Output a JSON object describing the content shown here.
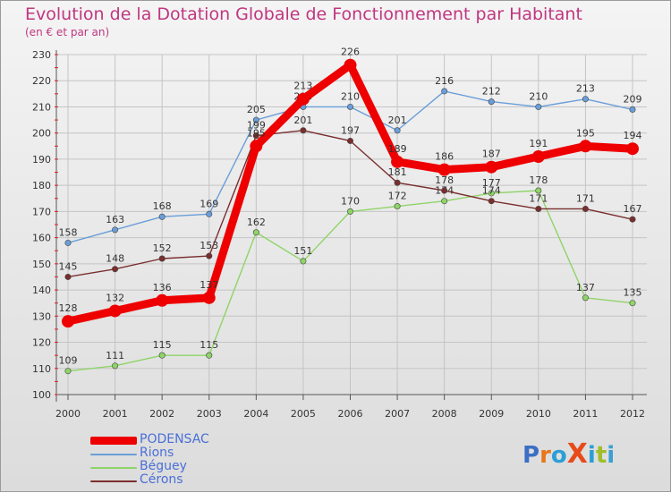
{
  "header": {
    "title": "Evolution de la Dotation Globale de Fonctionnement par Habitant",
    "subtitle": "(en € et par an)"
  },
  "brand": {
    "text": "ProXiti",
    "letters": [
      "P",
      "r",
      "o",
      "X",
      "i",
      "t",
      "i"
    ],
    "colors": [
      "#3b6fc5",
      "#e8761a",
      "#2a9fd6",
      "#e84b1a",
      "#2a9fd6",
      "#9fbf2a",
      "#3b9fd6"
    ]
  },
  "chart_data": {
    "type": "line",
    "title": "Evolution de la Dotation Globale de Fonctionnement par Habitant",
    "subtitle": "(en € et par an)",
    "xlabel": "",
    "ylabel": "",
    "ylim": [
      100,
      230
    ],
    "yticks": [
      100,
      110,
      120,
      130,
      140,
      150,
      160,
      170,
      180,
      190,
      200,
      210,
      220,
      230
    ],
    "grid": true,
    "legend_position": "bottom-left",
    "categories": [
      "2000",
      "2001",
      "2002",
      "2003",
      "2004",
      "2005",
      "2006",
      "2007",
      "2008",
      "2009",
      "2010",
      "2011",
      "2012"
    ],
    "series": [
      {
        "name": "PODENSAC",
        "color": "#ee0000",
        "emphasis": true,
        "values": [
          128,
          132,
          136,
          137,
          195,
          213,
          226,
          189,
          186,
          187,
          191,
          195,
          194
        ]
      },
      {
        "name": "Rions",
        "color": "#6a9ed8",
        "emphasis": false,
        "values": [
          158,
          163,
          168,
          169,
          205,
          210,
          210,
          201,
          216,
          212,
          210,
          213,
          209
        ]
      },
      {
        "name": "Béguey",
        "color": "#8fd468",
        "emphasis": false,
        "values": [
          109,
          111,
          115,
          115,
          162,
          151,
          170,
          172,
          174,
          177,
          178,
          137,
          135
        ]
      },
      {
        "name": "Cérons",
        "color": "#7a2e2e",
        "emphasis": false,
        "values": [
          145,
          148,
          152,
          153,
          199,
          201,
          197,
          181,
          178,
          174,
          171,
          171,
          167
        ]
      }
    ]
  }
}
